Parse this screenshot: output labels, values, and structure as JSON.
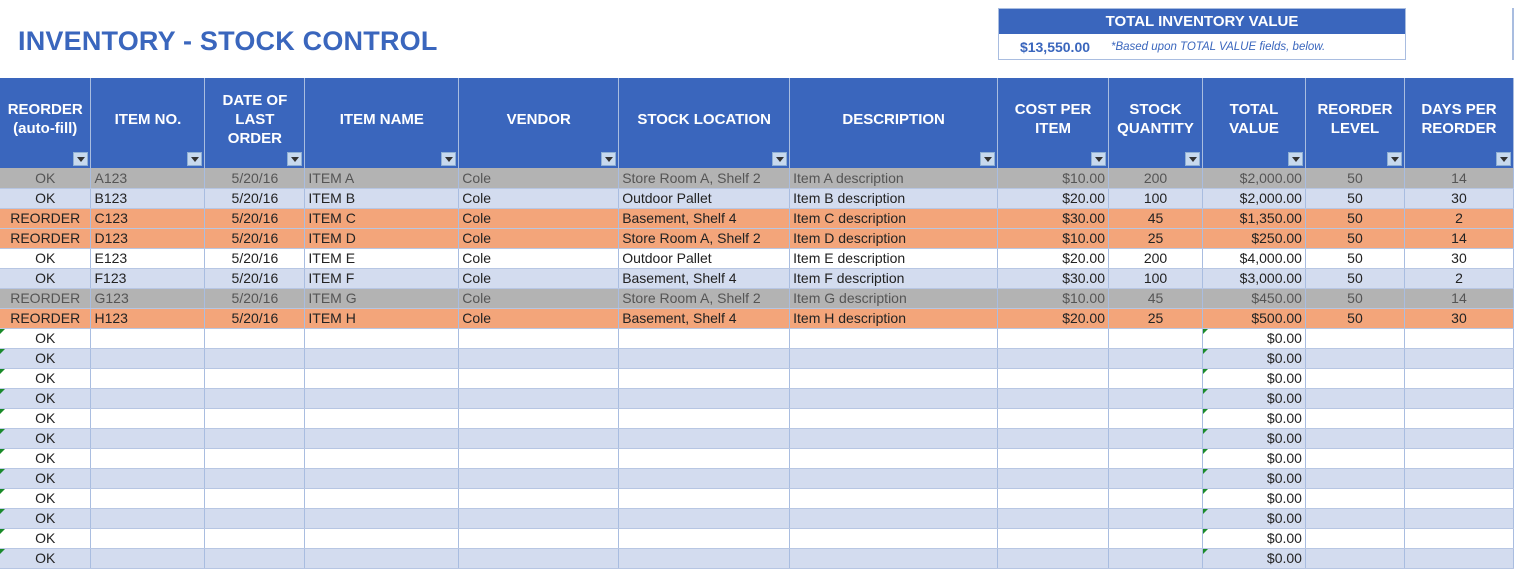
{
  "title": "INVENTORY - STOCK CONTROL",
  "summary": {
    "header": "TOTAL INVENTORY VALUE",
    "value": "$13,550.00",
    "note": "*Based upon TOTAL VALUE fields, below."
  },
  "colors": {
    "header": "#3a66bd",
    "ok_row": "#d3dcef",
    "reorder_row": "#f3a57a",
    "discontinued_row": "#b3b3b3"
  },
  "columns": [
    "REORDER (auto-fill)",
    "ITEM NO.",
    "DATE OF LAST ORDER",
    "ITEM NAME",
    "VENDOR",
    "STOCK LOCATION",
    "DESCRIPTION",
    "COST PER ITEM",
    "STOCK QUANTITY",
    "TOTAL VALUE",
    "REORDER LEVEL",
    "DAYS PER REORDER"
  ],
  "rows": [
    [
      "OK",
      "A123",
      "5/20/16",
      "ITEM A",
      "Cole",
      "Store Room A, Shelf 2",
      "Item A description",
      "$10.00",
      "200",
      "$2,000.00",
      "50",
      "14"
    ],
    [
      "OK",
      "B123",
      "5/20/16",
      "ITEM B",
      "Cole",
      "Outdoor Pallet",
      "Item B description",
      "$20.00",
      "100",
      "$2,000.00",
      "50",
      "30"
    ],
    [
      "REORDER",
      "C123",
      "5/20/16",
      "ITEM C",
      "Cole",
      "Basement, Shelf 4",
      "Item C description",
      "$30.00",
      "45",
      "$1,350.00",
      "50",
      "2"
    ],
    [
      "REORDER",
      "D123",
      "5/20/16",
      "ITEM D",
      "Cole",
      "Store Room A, Shelf 2",
      "Item D description",
      "$10.00",
      "25",
      "$250.00",
      "50",
      "14"
    ],
    [
      "OK",
      "E123",
      "5/20/16",
      "ITEM E",
      "Cole",
      "Outdoor Pallet",
      "Item E description",
      "$20.00",
      "200",
      "$4,000.00",
      "50",
      "30"
    ],
    [
      "OK",
      "F123",
      "5/20/16",
      "ITEM F",
      "Cole",
      "Basement, Shelf 4",
      "Item F description",
      "$30.00",
      "100",
      "$3,000.00",
      "50",
      "2"
    ],
    [
      "REORDER",
      "G123",
      "5/20/16",
      "ITEM G",
      "Cole",
      "Store Room A, Shelf 2",
      "Item G description",
      "$10.00",
      "45",
      "$450.00",
      "50",
      "14"
    ],
    [
      "REORDER",
      "H123",
      "5/20/16",
      "ITEM H",
      "Cole",
      "Basement, Shelf 4",
      "Item H description",
      "$20.00",
      "25",
      "$500.00",
      "50",
      "30"
    ]
  ],
  "row_styles": [
    "gray",
    "blue",
    "orange",
    "orange",
    "white",
    "blue",
    "gray",
    "orange"
  ],
  "empty_rows": {
    "count": 12,
    "reorder": "OK",
    "total": "$0.00"
  }
}
